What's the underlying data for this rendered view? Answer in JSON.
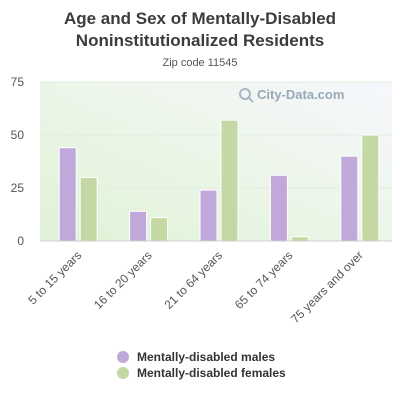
{
  "chart_data": {
    "type": "bar",
    "title_line1": "Age and Sex of Mentally-Disabled",
    "title_line2": "Noninstitutionalized Residents",
    "subtitle": "Zip code 11545",
    "categories": [
      "5 to 15 years",
      "16 to 20 years",
      "21 to 64 years",
      "65 to 74 years",
      "75 years and over"
    ],
    "series": [
      {
        "name": "Mentally-disabled males",
        "color": "#c0a8da",
        "values": [
          44,
          14,
          24,
          31,
          40
        ]
      },
      {
        "name": "Mentally-disabled females",
        "color": "#c4d8a4",
        "values": [
          30,
          11,
          57,
          2,
          50
        ]
      }
    ],
    "ylim": [
      0,
      75
    ],
    "yticks": [
      0,
      25,
      50,
      75
    ],
    "grid": true,
    "legend_position": "bottom"
  },
  "watermark": {
    "text": "City-Data.com",
    "icon": "magnifier-icon"
  }
}
